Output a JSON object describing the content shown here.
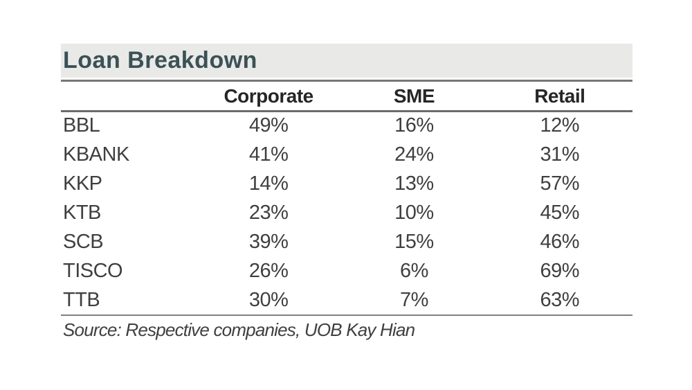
{
  "exhibit": {
    "title": "Loan Breakdown",
    "source": "Source: Respective companies, UOB Kay Hian"
  },
  "chart_data": {
    "type": "table",
    "title": "Loan Breakdown",
    "columns": [
      "",
      "Corporate",
      "SME",
      "Retail"
    ],
    "rows": [
      [
        "BBL",
        "49%",
        "16%",
        "12%"
      ],
      [
        "KBANK",
        "41%",
        "24%",
        "31%"
      ],
      [
        "KKP",
        "14%",
        "13%",
        "57%"
      ],
      [
        "KTB",
        "23%",
        "10%",
        "45%"
      ],
      [
        "SCB",
        "39%",
        "15%",
        "46%"
      ],
      [
        "TISCO",
        "26%",
        "6%",
        "69%"
      ],
      [
        "TTB",
        "30%",
        "7%",
        "63%"
      ]
    ],
    "source": "Source: Respective companies, UOB Kay Hian",
    "layout_hints": {
      "value_unit": "percent",
      "first_column": "bank-ticker",
      "gridlines": "horizontal rules under title, header and last row only"
    },
    "colors": {
      "title_text": "#3b5156",
      "title_bar_bg": "#e9e9e7",
      "rule_gray": "#767676",
      "header_text": "#262626",
      "body_text": "#3f3f3f",
      "page_bg": "#ffffff"
    }
  }
}
